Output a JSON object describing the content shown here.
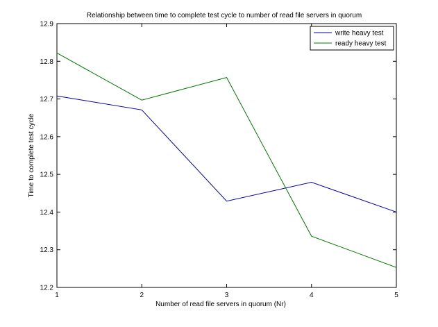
{
  "chart_data": {
    "type": "line",
    "title": "Relationship between time to complete test cycle to number of read file servers in quorum",
    "xlabel": "Number of read file servers in quorum (Nr)",
    "ylabel": "Time to complete test cycle",
    "x": [
      1,
      2,
      3,
      4,
      5
    ],
    "xlim": [
      1,
      5
    ],
    "ylim": [
      12.2,
      12.9
    ],
    "x_ticks": [
      "1",
      "2",
      "3",
      "4",
      "5"
    ],
    "y_ticks": [
      "12.2",
      "12.3",
      "12.4",
      "12.5",
      "12.6",
      "12.7",
      "12.8",
      "12.9"
    ],
    "grid": false,
    "legend_position": "top-right",
    "series": [
      {
        "name": "write heavy test",
        "color": "#0000aa",
        "values": [
          12.708,
          12.671,
          12.429,
          12.479,
          12.4
        ]
      },
      {
        "name": "ready heavy test",
        "color": "#007a00",
        "values": [
          12.822,
          12.697,
          12.757,
          12.336,
          12.253
        ]
      }
    ]
  }
}
